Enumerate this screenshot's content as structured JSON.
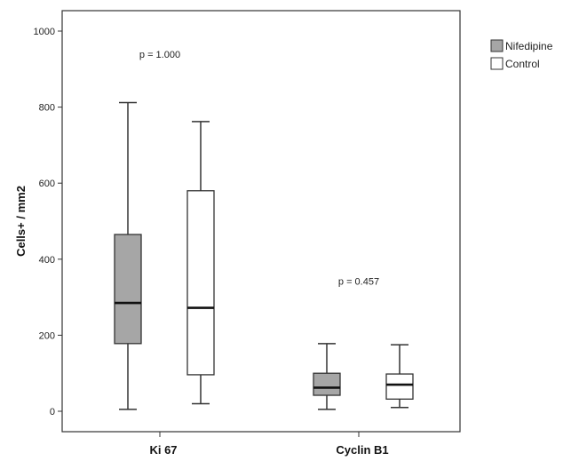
{
  "chart_data": {
    "type": "boxplot",
    "ylabel": "Cells+ / mm2",
    "ylim": [
      0,
      1050
    ],
    "yticks": [
      0,
      200,
      400,
      600,
      800,
      1000
    ],
    "categories": [
      "Ki 67",
      "Cyclin B1"
    ],
    "series": [
      {
        "name": "Nifedipine",
        "color": "#a6a6a6",
        "boxes": [
          {
            "category": "Ki 67",
            "min": 5,
            "q1": 178,
            "median": 285,
            "q3": 465,
            "max": 812
          },
          {
            "category": "Cyclin B1",
            "min": 5,
            "q1": 42,
            "median": 62,
            "q3": 100,
            "max": 178
          }
        ]
      },
      {
        "name": "Control",
        "color": "#ffffff",
        "boxes": [
          {
            "category": "Ki 67",
            "min": 20,
            "q1": 96,
            "median": 272,
            "q3": 580,
            "max": 762
          },
          {
            "category": "Cyclin B1",
            "min": 10,
            "q1": 32,
            "median": 70,
            "q3": 98,
            "max": 175
          }
        ]
      }
    ],
    "annotations": [
      {
        "category": "Ki 67",
        "text": "p = 1.000",
        "y": 930
      },
      {
        "category": "Cyclin B1",
        "text": "p = 0.457",
        "y": 333
      }
    ],
    "legend": {
      "position": "top-right",
      "entries": [
        "Nifedipine",
        "Control"
      ]
    },
    "grid": false
  }
}
